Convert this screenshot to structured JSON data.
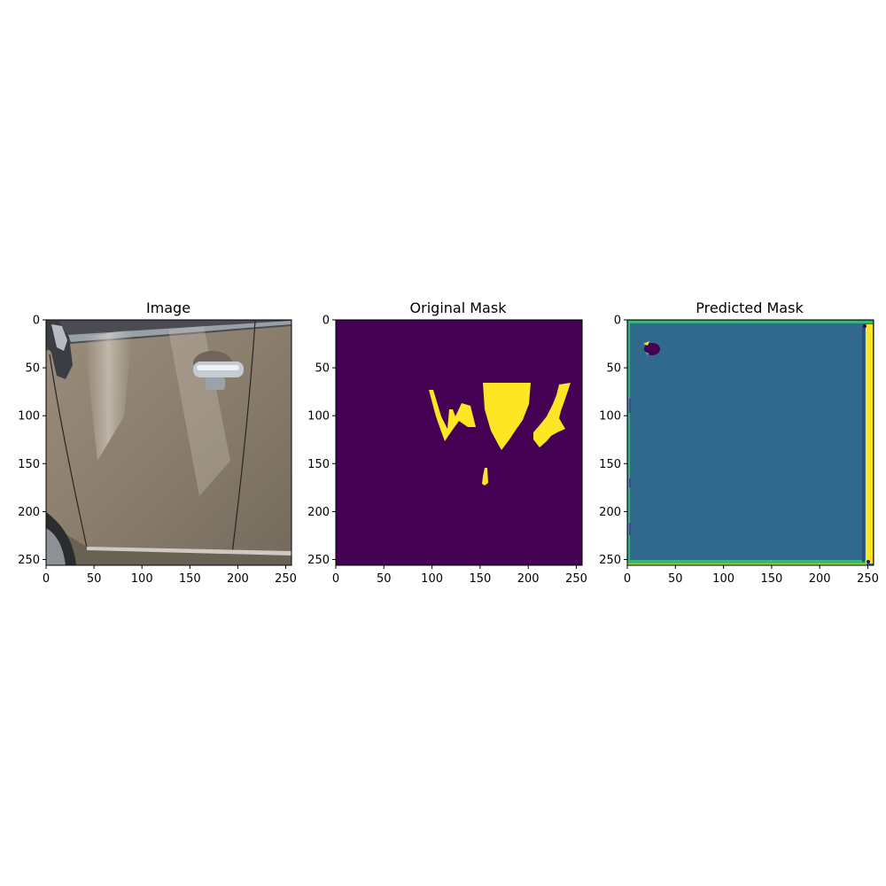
{
  "panels": [
    {
      "title": "Image",
      "content": "car-door-photo",
      "x_ticks": [
        "0",
        "50",
        "100",
        "150",
        "200",
        "250"
      ],
      "y_ticks": [
        "0",
        "50",
        "100",
        "150",
        "200",
        "250"
      ]
    },
    {
      "title": "Original Mask",
      "content": "ground-truth-mask",
      "colors": {
        "background": "#440154",
        "foreground": "#fde725"
      },
      "x_ticks": [
        "0",
        "50",
        "100",
        "150",
        "200",
        "250"
      ],
      "y_ticks": [
        "0",
        "50",
        "100",
        "150",
        "200",
        "250"
      ]
    },
    {
      "title": "Predicted Mask",
      "content": "predicted-mask",
      "colors": {
        "background": "#31688e",
        "edge": "#35b779",
        "highlight": "#fde725",
        "dark": "#440154"
      },
      "x_ticks": [
        "0",
        "50",
        "100",
        "150",
        "200",
        "250"
      ],
      "y_ticks": [
        "0",
        "50",
        "100",
        "150",
        "200",
        "250"
      ]
    }
  ],
  "axis_range": {
    "x": [
      0,
      256
    ],
    "y": [
      256,
      0
    ]
  },
  "tick_values": [
    0,
    50,
    100,
    150,
    200,
    250
  ]
}
